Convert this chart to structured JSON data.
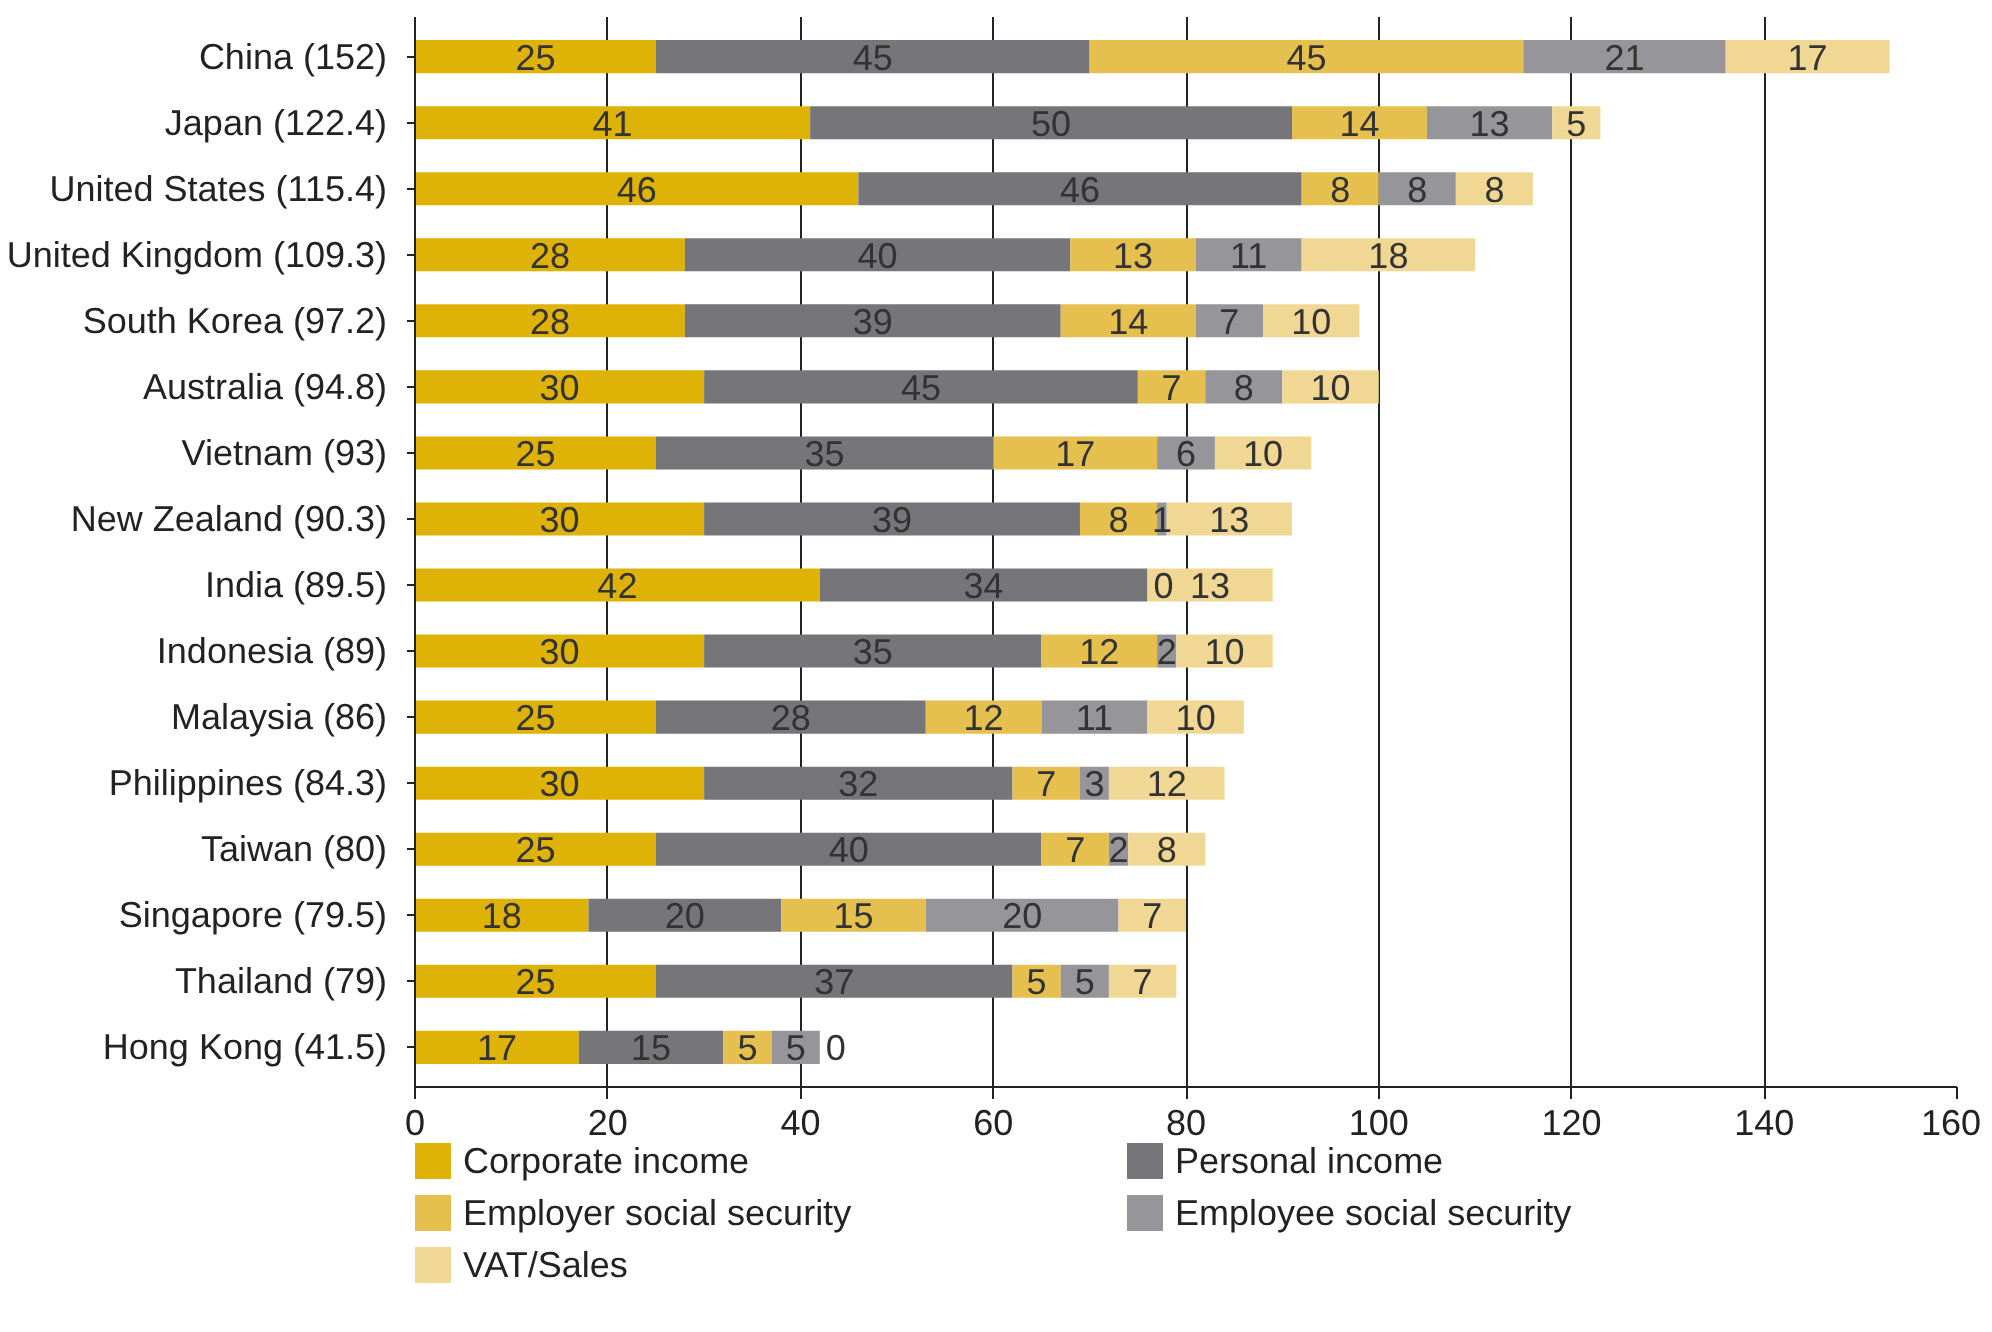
{
  "chart_data": {
    "type": "bar",
    "orientation": "horizontal",
    "stacked": true,
    "categories": [
      "China  (152)",
      "Japan  (122.4)",
      "United States  (115.4)",
      "United Kingdom  (109.3)",
      "South Korea  (97.2)",
      "Australia  (94.8)",
      "Vietnam  (93)",
      "New Zealand  (90.3)",
      "India  (89.5)",
      "Indonesia  (89)",
      "Malaysia  (86)",
      "Philippines  (84.3)",
      "Taiwan  (80)",
      "Singapore  (79.5)",
      "Thailand  (79)",
      "Hong Kong  (41.5)"
    ],
    "series": [
      {
        "name": "Corporate income",
        "color": "#dfb207",
        "values": [
          25,
          41,
          46,
          28,
          28,
          30,
          25,
          30,
          42,
          30,
          25,
          30,
          25,
          18,
          25,
          17
        ],
        "value_labels": [
          "25",
          "41",
          "46",
          "28",
          "28",
          "30",
          "25",
          "30",
          "42",
          "30",
          "25",
          "30",
          "25",
          "18",
          "25",
          "17"
        ]
      },
      {
        "name": "Personal income",
        "color": "#76767a",
        "values": [
          45,
          50,
          46,
          40,
          39,
          45,
          35,
          39,
          34,
          35,
          28,
          32,
          40,
          20,
          37,
          15
        ],
        "value_labels": [
          "45",
          "50",
          "46",
          "40",
          "39",
          "45",
          "35",
          "39",
          "34",
          "35",
          "28",
          "32",
          "40",
          "20",
          "37",
          "15"
        ]
      },
      {
        "name": "Employer social security",
        "color": "#e6c04f",
        "values": [
          45,
          14,
          8,
          13,
          14,
          7,
          17,
          8,
          0,
          12,
          12,
          7,
          7,
          15,
          5,
          5
        ],
        "value_labels": [
          "45",
          "14",
          "8",
          "13",
          "14",
          "7",
          "17",
          "8",
          null,
          "12",
          "12",
          "7",
          "7",
          "15",
          "5",
          "5"
        ]
      },
      {
        "name": "Employee social security",
        "color": "#96969a",
        "values": [
          21,
          13,
          8,
          11,
          7,
          8,
          6,
          1,
          0,
          2,
          11,
          3,
          2,
          20,
          5,
          5
        ],
        "value_labels": [
          "21",
          "13",
          "8",
          "11",
          "7",
          "8",
          "6",
          "1",
          "0",
          "2",
          "11",
          "3",
          "2",
          "20",
          "5",
          "5"
        ]
      },
      {
        "name": "VAT/Sales",
        "color": "#f0d894",
        "values": [
          17,
          5,
          8,
          18,
          10,
          10,
          10,
          13,
          13,
          10,
          10,
          12,
          8,
          7,
          7,
          0
        ],
        "value_labels": [
          "17",
          "5",
          "8",
          "18",
          "10",
          "10",
          "10",
          "13",
          "13",
          "10",
          "10",
          "12",
          "8",
          "7",
          "7",
          "0"
        ]
      }
    ],
    "xlim": [
      0,
      160
    ],
    "xticks": [
      0,
      20,
      40,
      60,
      80,
      100,
      120,
      140,
      160
    ],
    "grid": "x",
    "legend": "bottom"
  }
}
